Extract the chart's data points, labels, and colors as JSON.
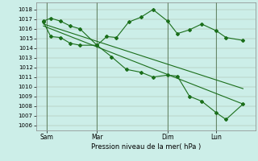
{
  "xlabel": "Pression niveau de la mer( hPa )",
  "bg_color": "#cceee8",
  "grid_color": "#bbbbbb",
  "line_color": "#1a6e1a",
  "ylim": [
    1005.5,
    1018.7
  ],
  "xlim": [
    -0.3,
    8.7
  ],
  "yticks": [
    1006,
    1007,
    1008,
    1009,
    1010,
    1011,
    1012,
    1013,
    1014,
    1015,
    1016,
    1017,
    1018
  ],
  "xtick_labels": [
    "Sam",
    "Mar",
    "Dim",
    "Lun"
  ],
  "xtick_positions": [
    0.15,
    2.2,
    5.1,
    7.1
  ],
  "vline_positions": [
    0.15,
    2.2,
    5.1,
    7.1
  ],
  "series1_x": [
    0,
    0.3,
    0.7,
    1.1,
    1.5,
    2.2,
    2.6,
    3.0,
    3.5,
    4.0,
    4.5,
    5.1,
    5.5,
    6.0,
    6.5,
    7.1,
    7.5,
    8.2
  ],
  "series1_y": [
    1016.8,
    1017.1,
    1016.8,
    1016.3,
    1016.0,
    1014.3,
    1015.2,
    1015.1,
    1016.7,
    1017.2,
    1018.0,
    1016.8,
    1015.5,
    1015.9,
    1016.5,
    1015.8,
    1015.1,
    1014.8
  ],
  "series2_x": [
    0,
    0.3,
    0.7,
    1.1,
    1.5,
    2.2,
    2.8,
    3.4,
    4.0,
    4.5,
    5.1,
    5.5,
    6.0,
    6.5,
    7.1,
    7.5,
    8.2
  ],
  "series2_y": [
    1016.7,
    1015.2,
    1015.1,
    1014.5,
    1014.3,
    1014.3,
    1013.1,
    1011.8,
    1011.5,
    1011.0,
    1011.2,
    1011.1,
    1009.0,
    1008.5,
    1007.3,
    1006.6,
    1008.2
  ],
  "trend1_x": [
    0,
    8.2
  ],
  "trend1_y": [
    1016.5,
    1009.8
  ],
  "trend2_x": [
    0,
    8.2
  ],
  "trend2_y": [
    1016.3,
    1008.2
  ]
}
